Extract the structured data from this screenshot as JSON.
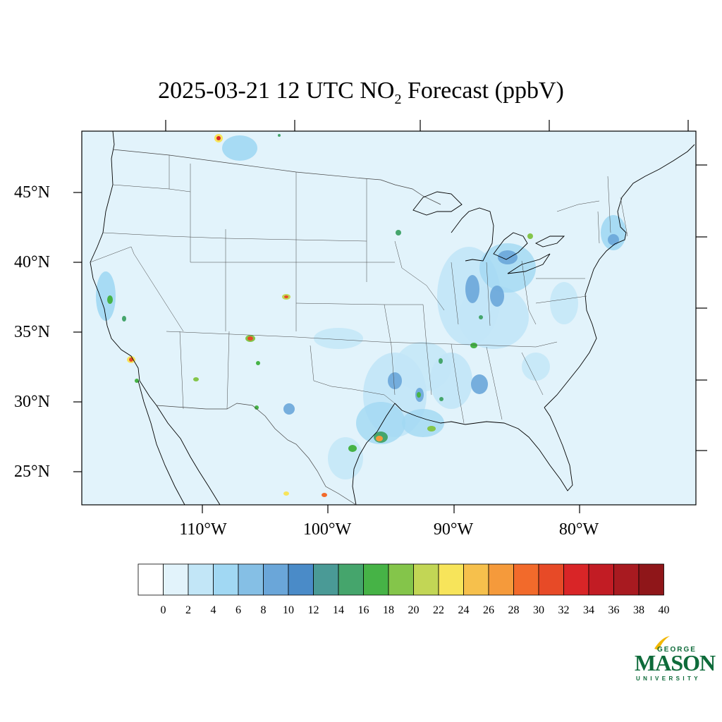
{
  "title": {
    "main": "2025-03-21 12 UTC NO",
    "subscript": "2",
    "rest": " Forecast (ppbV)"
  },
  "lat_labels": [
    "45°N",
    "40°N",
    "35°N",
    "30°N",
    "25°N"
  ],
  "lon_labels": [
    "110°W",
    "100°W",
    "90°W",
    "80°W"
  ],
  "colorbar": {
    "labels": [
      "0",
      "2",
      "4",
      "6",
      "8",
      "10",
      "12",
      "14",
      "16",
      "18",
      "20",
      "22",
      "24",
      "26",
      "28",
      "30",
      "32",
      "34",
      "36",
      "38",
      "40"
    ],
    "colors": [
      "#ffffff",
      "#e2f3fb",
      "#c2e6f7",
      "#a1d8f3",
      "#85bfe5",
      "#6aa6d9",
      "#4a8bc8",
      "#4a9a96",
      "#45a56c",
      "#46b346",
      "#84c54a",
      "#c2d655",
      "#f7e45a",
      "#f6c04c",
      "#f59a3b",
      "#f26a2b",
      "#e74a27",
      "#d92527",
      "#c21c24",
      "#a81a20",
      "#8f1619"
    ]
  },
  "logo": {
    "george": "GEORGE",
    "mason": "MASON",
    "university": "UNIVERSITY"
  },
  "map_colors": {
    "background": "#e2f3fb",
    "land_lines": "#000000",
    "state_lines": "#444444"
  }
}
